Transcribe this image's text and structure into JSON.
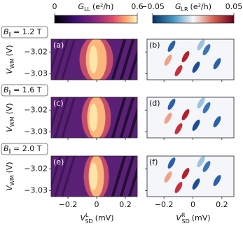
{
  "chart_data": {
    "type": "heatmap",
    "colorbars": [
      {
        "symbol": "G",
        "subscript": "LL",
        "unit": "(e²/h)",
        "colormap": "magma",
        "lim": [
          0,
          0.6
        ],
        "ticks": [
          0,
          0.6
        ]
      },
      {
        "symbol": "G",
        "subscript": "LR",
        "unit": "(e²/h)",
        "colormap": "coolwarm",
        "lim": [
          -0.05,
          0.05
        ],
        "ticks": [
          {
            "value": -0.05,
            "label": "−0.05"
          },
          0.05
        ]
      }
    ],
    "ylabel": {
      "symbol": "V",
      "subscript": "WM",
      "unit": "(V)"
    },
    "ylim": [
      -3.0328,
      -3.0141
    ],
    "yticks": [
      {
        "value": -3.02,
        "label": "−3.02"
      },
      {
        "value": -3.03,
        "label": "−3.03"
      }
    ],
    "xlim": [
      -0.317,
      0.283
    ],
    "xticks": [
      {
        "value": -0.2,
        "label": "−0.2"
      },
      0,
      0.2
    ],
    "xlabels": [
      {
        "symbol": "V",
        "superscript": "L",
        "subscript": "SD",
        "unit": "(mV)"
      },
      {
        "symbol": "V",
        "superscript": "R",
        "subscript": "SD",
        "unit": "(mV)"
      }
    ],
    "rows": [
      {
        "field": {
          "symbol": "B",
          "subscript": "∥",
          "value": "= 1.2 T"
        },
        "panels": [
          "(a)",
          "(b)"
        ]
      },
      {
        "field": {
          "symbol": "B",
          "subscript": "∥",
          "value": "= 1.6 T"
        },
        "panels": [
          "(c)",
          "(d)"
        ]
      },
      {
        "field": {
          "symbol": "B",
          "subscript": "∥",
          "value": "= 2.0 T"
        },
        "panels": [
          "(e)",
          "(f)"
        ]
      }
    ]
  }
}
